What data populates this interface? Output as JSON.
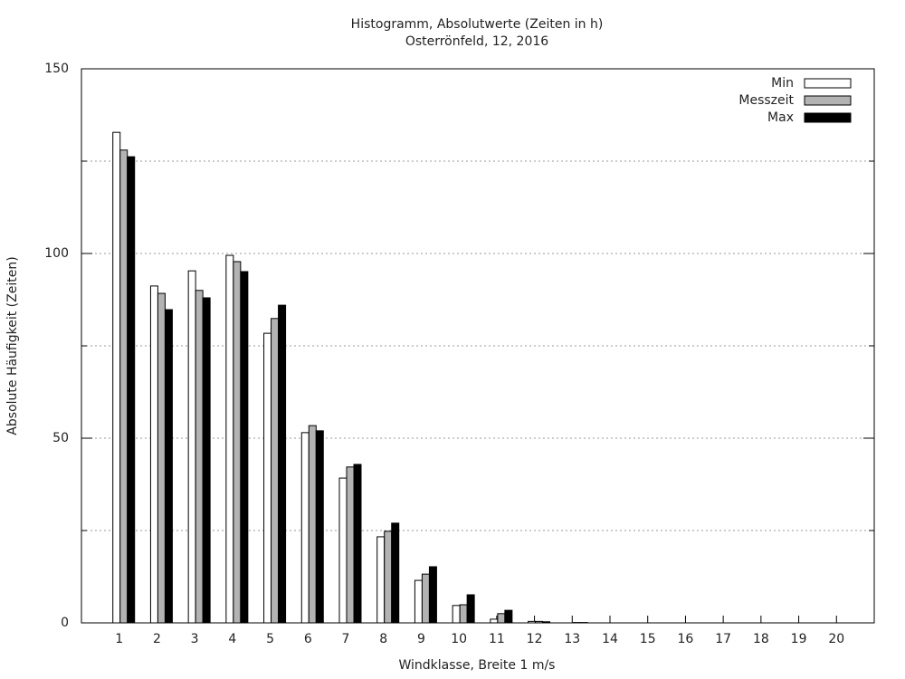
{
  "chart_data": {
    "type": "bar",
    "title": "Histogramm, Absolutwerte (Zeiten in h)",
    "subtitle": "Osterrönfeld, 12, 2016",
    "x_label": "Windklasse, Breite 1 m/s",
    "y_label": "Absolute Häufigkeit (Zeiten)",
    "categories": [
      "1",
      "2",
      "3",
      "4",
      "5",
      "6",
      "7",
      "8",
      "9",
      "10",
      "11",
      "12",
      "13",
      "14",
      "15",
      "16",
      "17",
      "18",
      "19",
      "20"
    ],
    "series": [
      {
        "name": "Min",
        "color": "#ffffff",
        "values": [
          132.8,
          91.2,
          95.3,
          99.5,
          78.4,
          51.5,
          39.2,
          23.3,
          11.5,
          4.7,
          1,
          0.4,
          0,
          0,
          0,
          0,
          0,
          0,
          0,
          0
        ]
      },
      {
        "name": "Messzeit",
        "color": "#b3b3b3",
        "values": [
          128,
          89.2,
          90,
          97.8,
          82.4,
          53.4,
          42.2,
          24.8,
          13.2,
          4.9,
          2.5,
          0.4,
          0.1,
          0,
          0,
          0,
          0,
          0,
          0,
          0
        ]
      },
      {
        "name": "Max",
        "color": "#000000",
        "values": [
          126.2,
          84.8,
          88,
          95.1,
          86,
          52,
          42.9,
          27,
          15.2,
          7.6,
          3.4,
          0.3,
          0.1,
          0,
          0,
          0,
          0,
          0,
          0,
          0
        ]
      }
    ],
    "ylim": [
      0,
      150
    ],
    "yticks": [
      0,
      50,
      100,
      150
    ],
    "y_minor_ticks": [
      25,
      75,
      125
    ],
    "grid": true,
    "legend": "top-right"
  }
}
